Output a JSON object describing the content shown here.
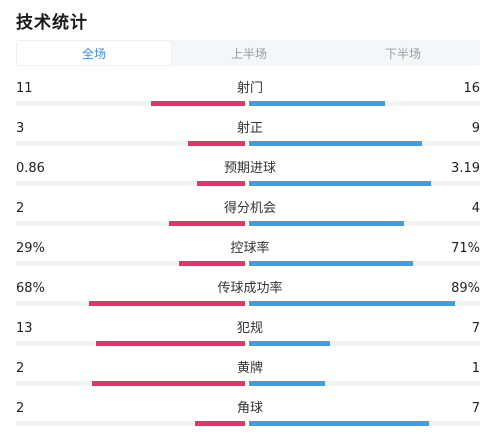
{
  "title": "技术统计",
  "tabs": [
    {
      "label": "全场",
      "active": true
    },
    {
      "label": "上半场",
      "active": false
    },
    {
      "label": "下半场",
      "active": false
    }
  ],
  "colors": {
    "home": "#e8336a",
    "away": "#3a9ee8",
    "track": "#f2f3f5",
    "accent": "#3a8ee6"
  },
  "stats": [
    {
      "label": "射门",
      "home": "11",
      "away": "16",
      "home_frac": 0.41,
      "away_frac": 0.59
    },
    {
      "label": "射正",
      "home": "3",
      "away": "9",
      "home_frac": 0.25,
      "away_frac": 0.75
    },
    {
      "label": "预期进球",
      "home": "0.86",
      "away": "3.19",
      "home_frac": 0.21,
      "away_frac": 0.79
    },
    {
      "label": "得分机会",
      "home": "2",
      "away": "4",
      "home_frac": 0.33,
      "away_frac": 0.67
    },
    {
      "label": "控球率",
      "home": "29%",
      "away": "71%",
      "home_frac": 0.29,
      "away_frac": 0.71
    },
    {
      "label": "传球成功率",
      "home": "68%",
      "away": "89%",
      "home_frac": 0.68,
      "away_frac": 0.89
    },
    {
      "label": "犯规",
      "home": "13",
      "away": "7",
      "home_frac": 0.65,
      "away_frac": 0.35
    },
    {
      "label": "黄牌",
      "home": "2",
      "away": "1",
      "home_frac": 0.67,
      "away_frac": 0.33
    },
    {
      "label": "角球",
      "home": "2",
      "away": "7",
      "home_frac": 0.22,
      "away_frac": 0.78
    }
  ]
}
